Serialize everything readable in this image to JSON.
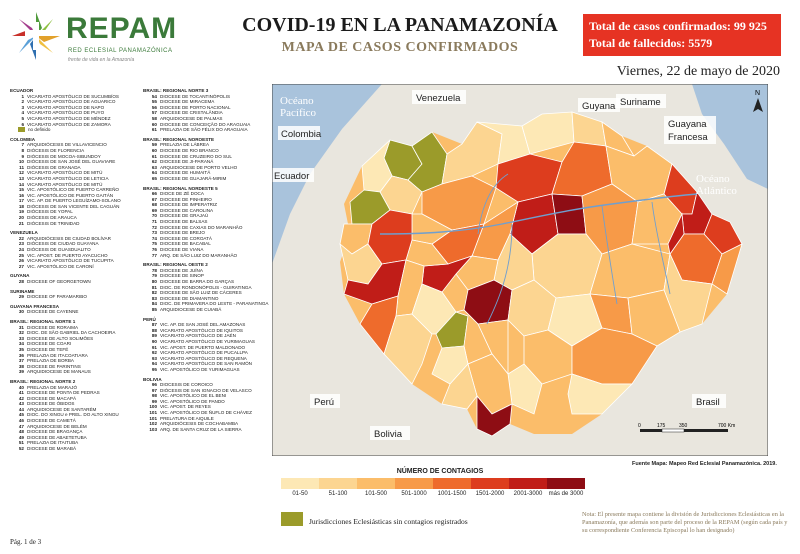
{
  "header": {
    "brand": "REPAM",
    "brand_sub": "RED ECLESIAL PANAMAZÓNICA",
    "brand_tagline": "frente de vida en la Amazonía",
    "title": "COVID-19 EN LA PANAMAZONÍA",
    "subtitle": "MAPA DE CASOS CONFIRMADOS",
    "total_cases": "Total de casos confirmados: 99 925",
    "total_deaths": "Total de fallecidos: 5579",
    "date": "Viernes, 22 de mayo de 2020"
  },
  "sidebar_left": [
    {
      "heading": "ECUADOR",
      "items": [
        {
          "n": "1",
          "name": "VICARIATO APOSTÓLICO DE SUCUMBÍOS"
        },
        {
          "n": "2",
          "name": "VICARIATO APOSTÓLICO DE AGUARICO"
        },
        {
          "n": "3",
          "name": "VICARIATO APOSTÓLICO DE NAPO"
        },
        {
          "n": "4",
          "name": "VICARIATO APOSTÓLICO DE PUYO"
        },
        {
          "n": "5",
          "name": "VICARIATO APOSTÓLICO DE MÉNDEZ"
        },
        {
          "n": "6",
          "name": "VICARIATO APOSTÓLICO DE ZAMORA"
        }
      ],
      "note": "no definido"
    },
    {
      "heading": "COLOMBIA",
      "items": [
        {
          "n": "7",
          "name": "ARQUIDIÓCESIS DE VILLAVICENCIO"
        },
        {
          "n": "8",
          "name": "DIÓCESIS DE FLORENCIA"
        },
        {
          "n": "9",
          "name": "DIÓCESIS DE MOCOA-SIBUNDOY"
        },
        {
          "n": "10",
          "name": "DIÓCESIS DE SAN JOSÉ DEL GUAVIARE"
        },
        {
          "n": "11",
          "name": "DIÓCESIS DE GRANADA"
        },
        {
          "n": "12",
          "name": "VICARIATO APOSTÓLICO DE MITÚ"
        },
        {
          "n": "13",
          "name": "VICARIATO APOSTÓLICO DE LETICIA"
        },
        {
          "n": "14",
          "name": "VICARIATO APOSTÓLICO DE MITÚ"
        },
        {
          "n": "15",
          "name": "VIC. APOSTÓLICO DE PUERTO CARREÑO"
        },
        {
          "n": "16",
          "name": "VIC. APOSTÓLICO DE PUERTO GAITÁN"
        },
        {
          "n": "17",
          "name": "VIC. AP. DE PUERTO LEGUÍZAMO-SOLANO"
        },
        {
          "n": "18",
          "name": "DIÓCESIS DE SAN VICENTE DEL CAGUÁN"
        },
        {
          "n": "19",
          "name": "DIÓCESIS DE YOPAL"
        },
        {
          "n": "20",
          "name": "DIÓCESIS DE ARAUCA"
        },
        {
          "n": "21",
          "name": "DIÓCESIS DE TRINIDAD"
        }
      ]
    },
    {
      "heading": "VENEZUELA",
      "items": [
        {
          "n": "22",
          "name": "ARQUIDIÓCESIS DE CIUDAD BOLÍVAR"
        },
        {
          "n": "23",
          "name": "DIÓCESIS DE CIUDAD GUAYANA"
        },
        {
          "n": "24",
          "name": "DIÓCESIS DE GUASDUALITO"
        },
        {
          "n": "25",
          "name": "VIC. APOST. DE PUERTO AYACUCHO"
        },
        {
          "n": "26",
          "name": "VICARIATO APOSTÓLICO DE TUCUPITA"
        },
        {
          "n": "27",
          "name": "VIC. APOSTÓLICO DE CARONÍ"
        }
      ]
    },
    {
      "heading": "GUYANA",
      "items": [
        {
          "n": "28",
          "name": "DIOCESE OF GEORGETOWN"
        }
      ]
    },
    {
      "heading": "SURINAME",
      "items": [
        {
          "n": "29",
          "name": "DIOCESE OF PARAMARIBO"
        }
      ]
    },
    {
      "heading": "GUAYANA FRANCESA",
      "items": [
        {
          "n": "30",
          "name": "DIOCESE DE CAYENNE"
        }
      ]
    },
    {
      "heading": "BRASIL: REGIONAL NORTE 1",
      "items": [
        {
          "n": "31",
          "name": "DIOCESE DE RORAIMA"
        },
        {
          "n": "32",
          "name": "DIOC. DE SÃO GABRIEL DA CACHOEIRA"
        },
        {
          "n": "33",
          "name": "DIOCESE DE ALTO SOLIMÕES"
        },
        {
          "n": "34",
          "name": "DIOCESE DE COARI"
        },
        {
          "n": "35",
          "name": "DIOCESE DE TEFÉ"
        },
        {
          "n": "36",
          "name": "PRELAZIA DE ITACOATIARA"
        },
        {
          "n": "37",
          "name": "PRELAZIA DE BORBA"
        },
        {
          "n": "38",
          "name": "DIOCESE DE PARINTINS"
        },
        {
          "n": "39",
          "name": "ARQUIDIOCESE DE MANAUS"
        }
      ]
    },
    {
      "heading": "BRASIL: REGIONAL NORTE 2",
      "items": [
        {
          "n": "40",
          "name": "PRELAZIA DE MARAJÓ"
        },
        {
          "n": "41",
          "name": "DIOCESE DE PONTA DE PEDRAS"
        },
        {
          "n": "42",
          "name": "DIOCESE DE MACAPÁ"
        },
        {
          "n": "43",
          "name": "DIOCESE DE ÓBIDOS"
        },
        {
          "n": "44",
          "name": "ARQUIDIOCESE DE SANTARÉM"
        },
        {
          "n": "45",
          "name": "DIOC. DO XINGU e PREL. DO ALTO XINGU"
        },
        {
          "n": "46",
          "name": "DIOCESE DE CAMETÁ"
        },
        {
          "n": "47",
          "name": "ARQUIDIOCESE DE BELÉM"
        },
        {
          "n": "48",
          "name": "DIOCESE DE BRAGANÇA"
        },
        {
          "n": "49",
          "name": "DIOCESE DE ABAETETUBA"
        },
        {
          "n": "51",
          "name": "PRELAZIA DE ITAITUBA"
        },
        {
          "n": "52",
          "name": "DIOCESE DE MARABÁ"
        }
      ]
    }
  ],
  "sidebar_right": [
    {
      "heading": "BRASIL: REGIONAL NORTE 3",
      "items": [
        {
          "n": "54",
          "name": "DIOCESE DE TOCANTINÓPOLIS"
        },
        {
          "n": "55",
          "name": "DIOCESE DE MIRACEMA"
        },
        {
          "n": "56",
          "name": "DIOCESE DE PORTO NACIONAL"
        },
        {
          "n": "57",
          "name": "DIOCESE DE CRISTALÂNDIA"
        },
        {
          "n": "58",
          "name": "ARQUIDIOCESE DE PALMAS"
        },
        {
          "n": "60",
          "name": "DIOCESE DE CONCEIÇÃO DO ARAGUAIA"
        },
        {
          "n": "61",
          "name": "PRELAZIA DE SÃO FÉLIX DO ARAGUAIA"
        }
      ]
    },
    {
      "heading": "BRASIL: REGIONAL NOROESTE",
      "items": [
        {
          "n": "59",
          "name": "PRELAZIA DE LÁBREA"
        },
        {
          "n": "60",
          "name": "DIOCESE DE RIO BRANCO"
        },
        {
          "n": "61",
          "name": "DIOCESE DE CRUZEIRO DO SUL"
        },
        {
          "n": "62",
          "name": "DIOCESE DE JI-PARANÁ"
        },
        {
          "n": "63",
          "name": "ARQUIDIOCESE DE PORTO VELHO"
        },
        {
          "n": "64",
          "name": "DIOCESE DE HUMAITÁ"
        },
        {
          "n": "65",
          "name": "DIOCESE DE GUAJARÁ-MIRIM"
        }
      ]
    },
    {
      "heading": "BRASIL: REGIONAL NORDESTE 5",
      "items": [
        {
          "n": "66",
          "name": "DIOCE DE ZÉ DOCA"
        },
        {
          "n": "67",
          "name": "DIOCESE DE PINHEIRO"
        },
        {
          "n": "68",
          "name": "DIOCESE DE IMPERATRIZ"
        },
        {
          "n": "69",
          "name": "DIOCESE DE CAROLINA"
        },
        {
          "n": "70",
          "name": "DIOCESE DE GRAJAÚ"
        },
        {
          "n": "71",
          "name": "DIOCESE DE BALSAS"
        },
        {
          "n": "72",
          "name": "DIOCESE DE CAXIAS DO MARANHÃO"
        },
        {
          "n": "73",
          "name": "DIOCESE DE BREJO"
        },
        {
          "n": "74",
          "name": "DIOCESE DE COROATÁ"
        },
        {
          "n": "75",
          "name": "DIOCESE DE BACABAL"
        },
        {
          "n": "76",
          "name": "DIOCESE DE VIANA"
        },
        {
          "n": "77",
          "name": "ARQ. DE SÃO LUIZ DO MARANHÃO"
        }
      ]
    },
    {
      "heading": "BRASIL: REGIONAL OESTE 2",
      "items": [
        {
          "n": "78",
          "name": "DIOCESE DE JUÍNA"
        },
        {
          "n": "79",
          "name": "DIOCESE DE SINOP"
        },
        {
          "n": "80",
          "name": "DIOCESE DE BARRA DO GARÇAS"
        },
        {
          "n": "81",
          "name": "DIOC. DE RONDONÓPOLIS - GUIRATINGA"
        },
        {
          "n": "82",
          "name": "DIOCESE DE SÃO LUIZ DE CÁCERES"
        },
        {
          "n": "83",
          "name": "DIOCESE DE DIAMANTINO"
        },
        {
          "n": "84",
          "name": "DIOC. DE PRIMAVERA DO LESTE - PARANATINGA"
        },
        {
          "n": "85",
          "name": "ARQUIDIOCESE DE CUIABÁ"
        }
      ]
    },
    {
      "heading": "PERÚ",
      "items": [
        {
          "n": "87",
          "name": "VIC. AP. DE SAN JOSÉ DEL AMAZONAS"
        },
        {
          "n": "88",
          "name": "VICARIATO APOSTÓLICO DE IQUITOS"
        },
        {
          "n": "89",
          "name": "VICARIATO APOSTÓLICO DE JAÉN"
        },
        {
          "n": "90",
          "name": "VICARIATO APOSTÓLICO DE YURIMAGUAS"
        },
        {
          "n": "91",
          "name": "VIC. APOST. DE PUERTO MALDONADO"
        },
        {
          "n": "92",
          "name": "VICARIATO APOSTÓLICO DE PUCALLPA"
        },
        {
          "n": "93",
          "name": "VICARIATO APOSTÓLICO DE REQUENA"
        },
        {
          "n": "94",
          "name": "VICARIATO APOSTÓLICO DE SAN RAMÓN"
        },
        {
          "n": "95",
          "name": "VIC. APOSTÓLICO DE YURIMAGUAS"
        }
      ]
    },
    {
      "heading": "BOLIVIA",
      "items": [
        {
          "n": "96",
          "name": "DIOCESIS DE COROICO"
        },
        {
          "n": "97",
          "name": "DIÓCESIS DE SAN IGNACIO DE VELASCO"
        },
        {
          "n": "98",
          "name": "VIC. APOSTÓLICO DE EL BENI"
        },
        {
          "n": "99",
          "name": "VIC. APOSTÓLICO DE PANDO"
        },
        {
          "n": "100",
          "name": "VIC. APOST. DE REYES"
        },
        {
          "n": "101",
          "name": "VIC. APOSTÓLICO DE ÑUFLO DE CHÁVEZ"
        },
        {
          "n": "101",
          "name": "PRELATURA DE AIQUILE"
        },
        {
          "n": "102",
          "name": "ARQUIDIÓCESIS DE COCHABAMBA"
        },
        {
          "n": "103",
          "name": "ARQ. DE SANTA CRUZ DE LA SIERRA"
        }
      ]
    }
  ],
  "map": {
    "oceans": [
      "Océano",
      "Pacífico",
      "Océano",
      "Atlántico"
    ],
    "countries": [
      "Venezuela",
      "Colombia",
      "Ecuador",
      "Guyana",
      "Suriname",
      "Guayana",
      "Francesa",
      "Perú",
      "Bolivia",
      "Brasil"
    ],
    "scale_labels": [
      "0",
      "175",
      "350",
      "700 Km"
    ],
    "north": "N",
    "colors": {
      "ocean": "#a9c3dc",
      "land_out": "#e9e6de",
      "c1": "#fde8b5",
      "c2": "#fcd591",
      "c3": "#fbbd6a",
      "c4": "#f79a48",
      "c5": "#ee6b2c",
      "c6": "#dd3d1e",
      "c7": "#c01d18",
      "c8": "#8e0d14",
      "nodata": "#9b9b2a",
      "river": "#6f9fcf"
    }
  },
  "legend": {
    "title": "NÚMERO DE CONTAGIOS",
    "classes": [
      "01-50",
      "51-100",
      "101-500",
      "501-1000",
      "1001-1500",
      "1501-2000",
      "2001-3000",
      "más de 3000"
    ],
    "no_cases": "Jurisdicciones Eclesiásticas sin contagios registrados"
  },
  "source": "Fuente Mapa: Mapeo Red Eclesial Panamazónica. 2019.",
  "note": "Nota: El presente mapa contiene la división de Jurisdicciones Eclesiásticas en la Panamazonía, que además son parte del proceso de la REPAM (según cada país y su correspondiente Conferencia Episcopal lo han designado)",
  "page": "Pág. 1 de 3"
}
